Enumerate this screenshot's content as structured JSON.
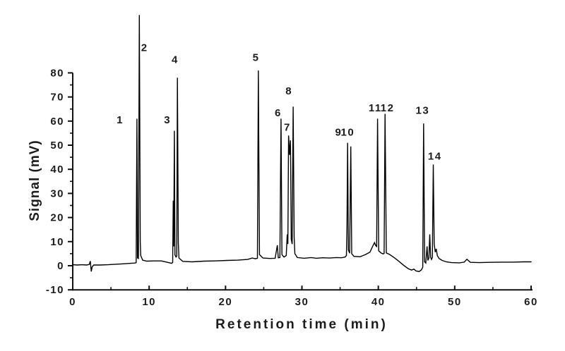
{
  "figure": {
    "background": "#ffffff",
    "trace_color": "#000000",
    "axis_color": "#111111",
    "text_color": "#1c1c1c"
  },
  "chart_data": {
    "type": "line",
    "title": "",
    "xlabel": "Retention time (min)",
    "ylabel": "Signal (mV)",
    "xlim": [
      0,
      60
    ],
    "ylim": [
      -10,
      80
    ],
    "x_major_ticks": [
      0,
      10,
      20,
      30,
      40,
      50,
      60
    ],
    "x_minor_ticks": [
      5,
      15,
      25,
      35,
      45,
      55
    ],
    "y_major_ticks": [
      -10,
      0,
      10,
      20,
      30,
      40,
      50,
      60,
      70,
      80
    ],
    "y_minor_ticks": [
      -5,
      5,
      15,
      25,
      35,
      45,
      55,
      65,
      75
    ],
    "grid": false,
    "legend": null,
    "peaks": [
      {
        "label": "1",
        "retention_min": 8.4,
        "height_mV": 61
      },
      {
        "label": "2",
        "retention_min": 8.7,
        "height_mV": 104
      },
      {
        "label": "3",
        "retention_min": 13.3,
        "height_mV": 56
      },
      {
        "label": "4",
        "retention_min": 13.7,
        "height_mV": 78
      },
      {
        "label": "5",
        "retention_min": 24.3,
        "height_mV": 81
      },
      {
        "label": "6",
        "retention_min": 27.3,
        "height_mV": 61
      },
      {
        "label": "7",
        "retention_min": 28.3,
        "height_mV": 54
      },
      {
        "label": "8",
        "retention_min": 28.9,
        "height_mV": 66
      },
      {
        "label": "9",
        "retention_min": 36.0,
        "height_mV": 51
      },
      {
        "label": "10",
        "retention_min": 36.4,
        "height_mV": 50
      },
      {
        "label": "11",
        "retention_min": 39.9,
        "height_mV": 61
      },
      {
        "label": "12",
        "retention_min": 40.9,
        "height_mV": 63
      },
      {
        "label": "13",
        "retention_min": 45.9,
        "height_mV": 59
      },
      {
        "label": "14",
        "retention_min": 47.2,
        "height_mV": 42
      }
    ],
    "peak_labels": [
      {
        "text": "1",
        "t": 6.2,
        "mv": 59
      },
      {
        "text": "2",
        "t": 9.4,
        "mv": 89
      },
      {
        "text": "3",
        "t": 12.4,
        "mv": 59
      },
      {
        "text": "4",
        "t": 13.4,
        "mv": 84
      },
      {
        "text": "5",
        "t": 24.0,
        "mv": 85
      },
      {
        "text": "6",
        "t": 26.9,
        "mv": 62
      },
      {
        "text": "7",
        "t": 28.1,
        "mv": 56
      },
      {
        "text": "8",
        "t": 28.3,
        "mv": 71
      },
      {
        "text": "9",
        "t": 34.8,
        "mv": 54
      },
      {
        "text": "10",
        "t": 36.0,
        "mv": 54
      },
      {
        "text": "11",
        "t": 39.6,
        "mv": 64
      },
      {
        "text": "12",
        "t": 41.2,
        "mv": 64
      },
      {
        "text": "13",
        "t": 45.8,
        "mv": 63
      },
      {
        "text": "14",
        "t": 47.4,
        "mv": 44
      }
    ],
    "series": [
      {
        "name": "chromatogram",
        "points": [
          [
            0,
            0.4
          ],
          [
            0.6,
            0.3
          ],
          [
            1.2,
            0.4
          ],
          [
            1.8,
            0.3
          ],
          [
            2.15,
            0.5
          ],
          [
            2.3,
            1.9
          ],
          [
            2.42,
            -2.4
          ],
          [
            2.55,
            -0.4
          ],
          [
            2.75,
            0.3
          ],
          [
            3.6,
            0.3
          ],
          [
            4.6,
            0.4
          ],
          [
            5.6,
            0.6
          ],
          [
            6.6,
            0.8
          ],
          [
            7.6,
            1.0
          ],
          [
            8.15,
            1.1
          ],
          [
            8.3,
            1.3
          ],
          [
            8.4,
            61
          ],
          [
            8.48,
            3.2
          ],
          [
            8.6,
            3.0
          ],
          [
            8.72,
            104
          ],
          [
            8.84,
            10
          ],
          [
            8.9,
            4.2
          ],
          [
            9.15,
            2.3
          ],
          [
            9.7,
            1.9
          ],
          [
            10.6,
            2.0
          ],
          [
            11.6,
            2.0
          ],
          [
            12.4,
            1.4
          ],
          [
            12.95,
            1.0
          ],
          [
            13.08,
            1.4
          ],
          [
            13.16,
            27
          ],
          [
            13.22,
            8
          ],
          [
            13.3,
            56
          ],
          [
            13.38,
            4.5
          ],
          [
            13.52,
            3.6
          ],
          [
            13.62,
            4.0
          ],
          [
            13.7,
            78
          ],
          [
            13.82,
            9.5
          ],
          [
            13.9,
            3.2
          ],
          [
            14.4,
            1.8
          ],
          [
            15.6,
            1.6
          ],
          [
            17.2,
            1.9
          ],
          [
            18.6,
            2.0
          ],
          [
            20.2,
            2.2
          ],
          [
            21.6,
            2.3
          ],
          [
            22.9,
            2.6
          ],
          [
            23.5,
            3.2
          ],
          [
            23.9,
            2.9
          ],
          [
            24.18,
            3.1
          ],
          [
            24.3,
            81
          ],
          [
            24.44,
            4.6
          ],
          [
            24.9,
            3.2
          ],
          [
            25.8,
            3.0
          ],
          [
            26.5,
            3.1
          ],
          [
            26.78,
            8.5
          ],
          [
            26.9,
            3.3
          ],
          [
            27.12,
            3.4
          ],
          [
            27.26,
            61
          ],
          [
            27.38,
            4.6
          ],
          [
            27.65,
            3.6
          ],
          [
            27.95,
            4.2
          ],
          [
            28.08,
            13
          ],
          [
            28.16,
            9
          ],
          [
            28.25,
            54
          ],
          [
            28.38,
            46
          ],
          [
            28.5,
            52
          ],
          [
            28.6,
            11
          ],
          [
            28.72,
            9
          ],
          [
            28.85,
            66
          ],
          [
            28.98,
            12
          ],
          [
            29.08,
            5
          ],
          [
            29.4,
            3.4
          ],
          [
            30.3,
            3.1
          ],
          [
            31.2,
            3.4
          ],
          [
            31.9,
            3.1
          ],
          [
            32.7,
            3.3
          ],
          [
            33.6,
            3.2
          ],
          [
            34.5,
            3.4
          ],
          [
            35.2,
            3.3
          ],
          [
            35.65,
            3.6
          ],
          [
            35.82,
            4.2
          ],
          [
            35.9,
            16
          ],
          [
            35.98,
            51
          ],
          [
            36.08,
            6.5
          ],
          [
            36.25,
            5.2
          ],
          [
            36.4,
            49.5
          ],
          [
            36.52,
            5
          ],
          [
            36.8,
            3.9
          ],
          [
            37.6,
            3.7
          ],
          [
            38.3,
            4.6
          ],
          [
            38.9,
            5.6
          ],
          [
            39.25,
            8
          ],
          [
            39.5,
            9.6
          ],
          [
            39.65,
            8.4
          ],
          [
            39.78,
            8.0
          ],
          [
            39.9,
            61
          ],
          [
            40.05,
            6.2
          ],
          [
            40.35,
            5.3
          ],
          [
            40.62,
            4.9
          ],
          [
            40.76,
            5.1
          ],
          [
            40.88,
            63
          ],
          [
            41.05,
            5.3
          ],
          [
            41.45,
            4.7
          ],
          [
            42.1,
            3.3
          ],
          [
            42.7,
            1.8
          ],
          [
            43.3,
            0.2
          ],
          [
            43.9,
            -1.2
          ],
          [
            44.35,
            -1.8
          ],
          [
            44.65,
            -1.4
          ],
          [
            44.95,
            -2.2
          ],
          [
            45.35,
            -2.4
          ],
          [
            45.65,
            -1.7
          ],
          [
            45.82,
            -0.6
          ],
          [
            45.93,
            59
          ],
          [
            46.06,
            1.6
          ],
          [
            46.22,
            1.1
          ],
          [
            46.38,
            8
          ],
          [
            46.48,
            2.2
          ],
          [
            46.62,
            3.2
          ],
          [
            46.73,
            13
          ],
          [
            46.84,
            3.6
          ],
          [
            46.96,
            2.6
          ],
          [
            47.08,
            3.4
          ],
          [
            47.2,
            42
          ],
          [
            47.32,
            9
          ],
          [
            47.45,
            5.6
          ],
          [
            47.58,
            7
          ],
          [
            47.72,
            4.2
          ],
          [
            47.95,
            3.0
          ],
          [
            48.35,
            2.2
          ],
          [
            48.9,
            1.6
          ],
          [
            49.6,
            1.3
          ],
          [
            50.6,
            1.2
          ],
          [
            51.25,
            1.5
          ],
          [
            51.6,
            2.7
          ],
          [
            52.05,
            1.4
          ],
          [
            53.2,
            1.3
          ],
          [
            54.6,
            1.4
          ],
          [
            56.2,
            1.5
          ],
          [
            57.6,
            1.5
          ],
          [
            59,
            1.6
          ],
          [
            60,
            1.6
          ]
        ]
      }
    ]
  }
}
